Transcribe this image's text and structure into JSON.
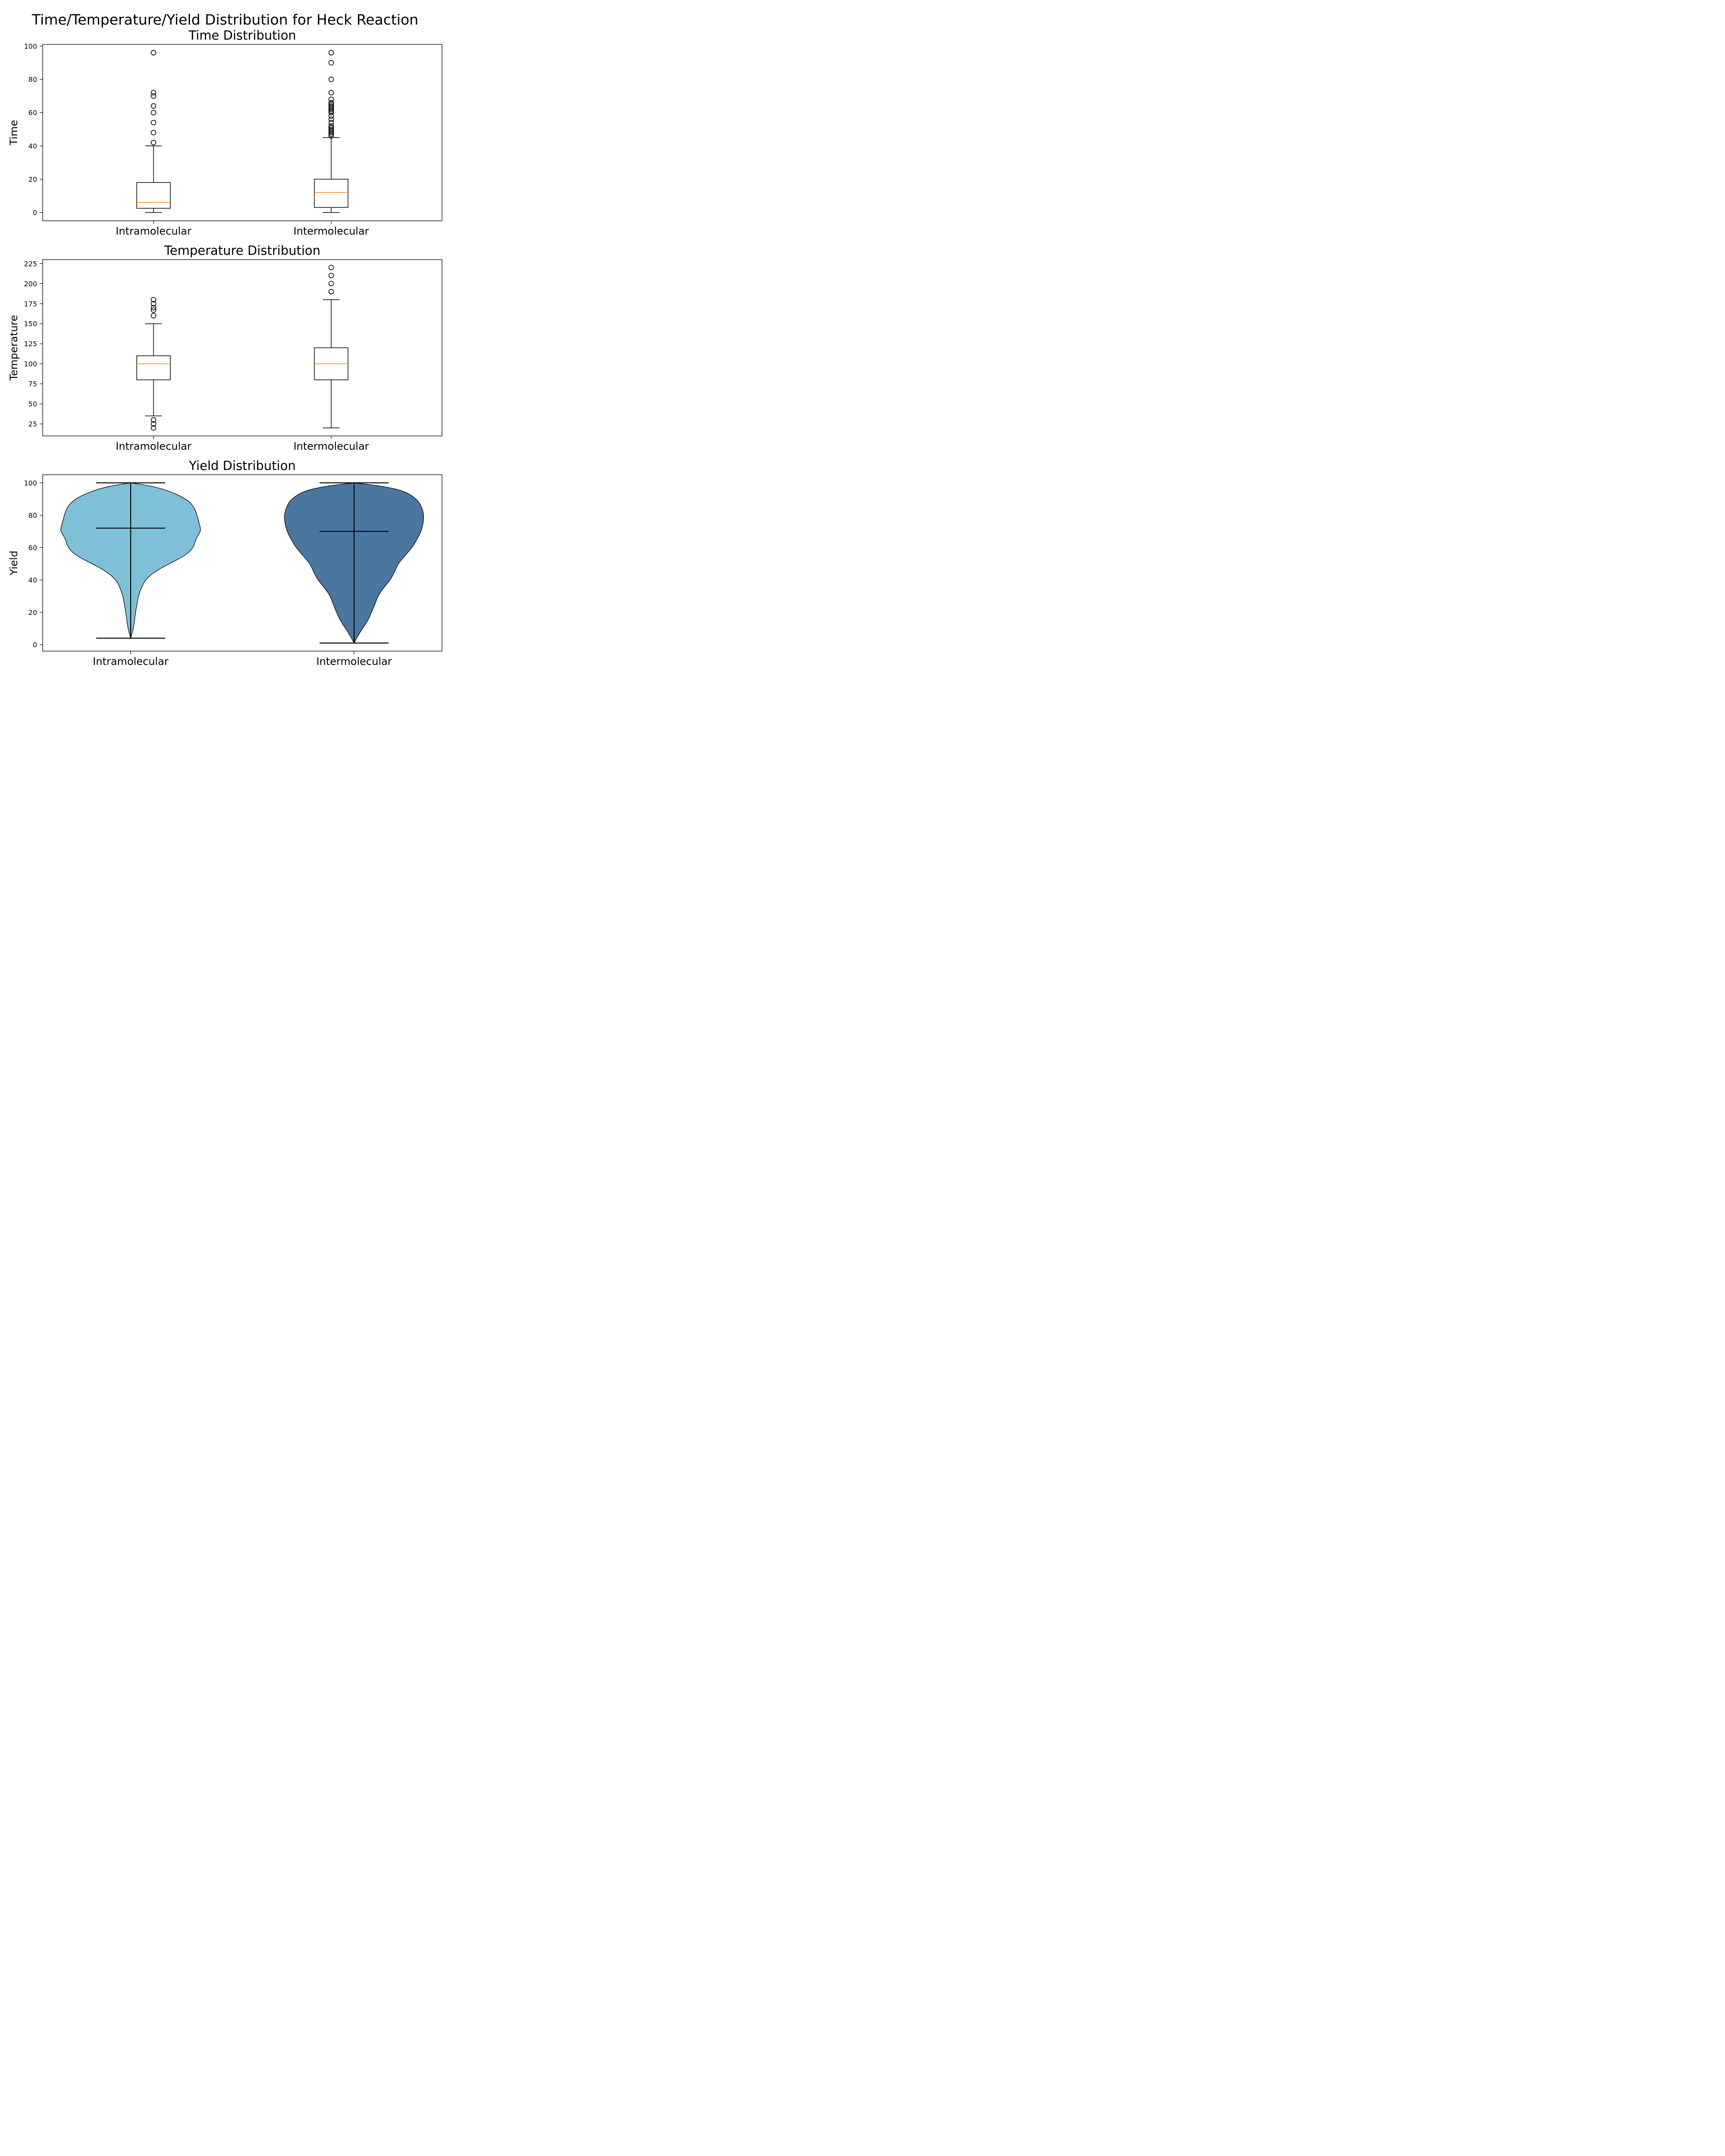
{
  "figure": {
    "suptitle": "Time/Temperature/Yield Distribution for Heck Reaction"
  },
  "chart_data": [
    {
      "type": "box",
      "title": "Time Distribution",
      "xlabel": "",
      "ylabel": "Time",
      "categories": [
        "Intramolecular",
        "Intermolecular"
      ],
      "ylim": [
        -5,
        101
      ],
      "yticks": [
        0,
        20,
        40,
        60,
        80,
        100
      ],
      "median_color": "#ff7f0e",
      "boxes": [
        {
          "category": "Intramolecular",
          "whisker_low": 0,
          "q1": 2.5,
          "median": 6,
          "q3": 18,
          "whisker_high": 40,
          "outliers": [
            42,
            48,
            54,
            60,
            64,
            70,
            72,
            96
          ]
        },
        {
          "category": "Intermolecular",
          "whisker_low": 0,
          "q1": 3,
          "median": 12,
          "q3": 20,
          "whisker_high": 45,
          "outliers": [
            46,
            47,
            48,
            49,
            50,
            51,
            52,
            54,
            56,
            58,
            60,
            61,
            62,
            63,
            64,
            65,
            66,
            68,
            72,
            80,
            90,
            96
          ]
        }
      ]
    },
    {
      "type": "box",
      "title": "Temperature Distribution",
      "xlabel": "",
      "ylabel": "Temperature",
      "categories": [
        "Intramolecular",
        "Intermolecular"
      ],
      "ylim": [
        10,
        230
      ],
      "yticks": [
        25,
        50,
        75,
        100,
        125,
        150,
        175,
        200,
        225
      ],
      "median_color": "#ff7f0e",
      "boxes": [
        {
          "category": "Intramolecular",
          "whisker_low": 35,
          "q1": 80,
          "median": 100,
          "q3": 110,
          "whisker_high": 150,
          "outliers": [
            20,
            25,
            30,
            160,
            167,
            170,
            175,
            180
          ]
        },
        {
          "category": "Intermolecular",
          "whisker_low": 20,
          "q1": 80,
          "median": 100,
          "q3": 120,
          "whisker_high": 180,
          "outliers": [
            190,
            200,
            210,
            220
          ]
        }
      ]
    },
    {
      "type": "violin",
      "title": "Yield Distribution",
      "xlabel": "",
      "ylabel": "Yield",
      "categories": [
        "Intramolecular",
        "Intermolecular"
      ],
      "ylim": [
        -4,
        105
      ],
      "yticks": [
        0,
        20,
        40,
        60,
        80,
        100
      ],
      "violins": [
        {
          "category": "Intramolecular",
          "color": "#7fc0d9",
          "min": 4,
          "mean": 72,
          "max": 100,
          "profile": [
            [
              4,
              0.0
            ],
            [
              10,
              0.04
            ],
            [
              20,
              0.07
            ],
            [
              25,
              0.09
            ],
            [
              30,
              0.11
            ],
            [
              35,
              0.15
            ],
            [
              40,
              0.21
            ],
            [
              45,
              0.34
            ],
            [
              50,
              0.55
            ],
            [
              55,
              0.78
            ],
            [
              60,
              0.9
            ],
            [
              65,
              0.93
            ],
            [
              70,
              1.0
            ],
            [
              72,
              1.0
            ],
            [
              75,
              0.98
            ],
            [
              80,
              0.95
            ],
            [
              85,
              0.91
            ],
            [
              90,
              0.8
            ],
            [
              95,
              0.55
            ],
            [
              98,
              0.3
            ],
            [
              100,
              0.0
            ]
          ]
        },
        {
          "category": "Intermolecular",
          "color": "#4a76a0",
          "min": 1,
          "mean": 70,
          "max": 100,
          "profile": [
            [
              1,
              0.0
            ],
            [
              5,
              0.05
            ],
            [
              10,
              0.12
            ],
            [
              15,
              0.2
            ],
            [
              20,
              0.25
            ],
            [
              25,
              0.3
            ],
            [
              30,
              0.34
            ],
            [
              35,
              0.42
            ],
            [
              40,
              0.52
            ],
            [
              45,
              0.58
            ],
            [
              50,
              0.63
            ],
            [
              55,
              0.73
            ],
            [
              60,
              0.83
            ],
            [
              65,
              0.9
            ],
            [
              70,
              0.96
            ],
            [
              75,
              0.99
            ],
            [
              80,
              1.0
            ],
            [
              85,
              0.97
            ],
            [
              90,
              0.9
            ],
            [
              95,
              0.72
            ],
            [
              98,
              0.4
            ],
            [
              100,
              0.0
            ]
          ]
        }
      ]
    }
  ]
}
